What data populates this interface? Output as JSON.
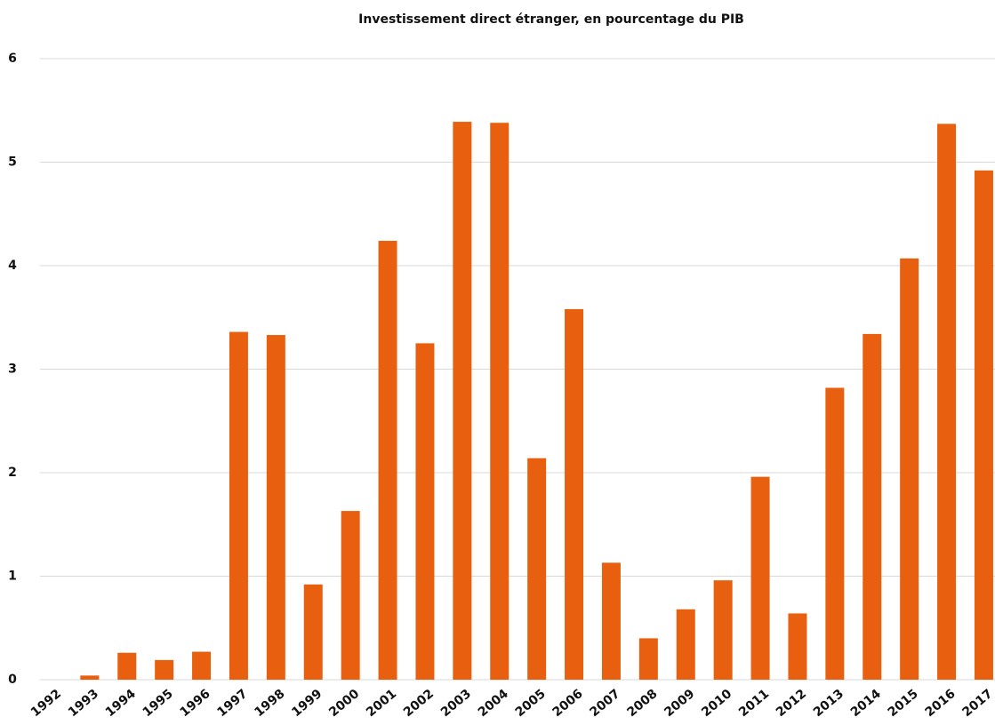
{
  "chart_data": {
    "type": "bar",
    "title": "Investissement direct étranger, en pourcentage du PIB",
    "categories": [
      "1992",
      "1993",
      "1994",
      "1995",
      "1996",
      "1997",
      "1998",
      "1999",
      "2000",
      "2001",
      "2002",
      "2003",
      "2004",
      "2005",
      "2006",
      "2007",
      "2008",
      "2009",
      "2010",
      "2011",
      "2012",
      "2013",
      "2014",
      "2015",
      "2016",
      "2017"
    ],
    "values": [
      0,
      0.04,
      0.26,
      0.19,
      0.27,
      3.36,
      3.33,
      0.92,
      1.63,
      4.24,
      3.25,
      5.39,
      5.38,
      2.14,
      3.58,
      1.13,
      0.4,
      0.68,
      0.96,
      1.96,
      0.64,
      2.82,
      3.34,
      4.07,
      5.37,
      4.92
    ],
    "color": "#e8600f",
    "ylim": [
      0,
      6
    ],
    "yticks": [
      0,
      1,
      2,
      3,
      4,
      5,
      6
    ],
    "grid": true
  }
}
